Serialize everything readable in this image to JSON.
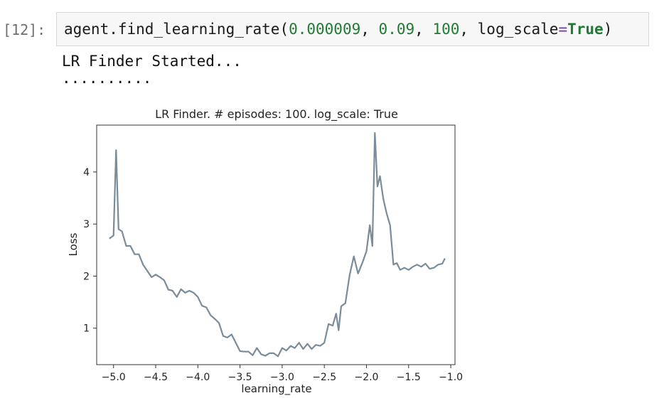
{
  "cell": {
    "prompt": "[12]:",
    "code": {
      "fn": "agent.find_learning_rate",
      "open_paren": "(",
      "arg1": "0.000009",
      "sep1": ", ",
      "arg2": "0.09",
      "sep2": ", ",
      "arg3": "100",
      "sep3": ", ",
      "kw_name": "log_scale",
      "kw_eq": "=",
      "kw_val": "True",
      "close_paren": ")"
    }
  },
  "output": {
    "line1": "LR Finder Started...",
    "line2": ".........."
  },
  "chart_data": {
    "type": "line",
    "title": "LR Finder. # episodes: 100. log_scale: True",
    "xlabel": "learning_rate",
    "ylabel": "Loss",
    "xlim": [
      -5.2,
      -0.95
    ],
    "ylim": [
      0.3,
      4.9
    ],
    "xticks": [
      -5.0,
      -4.5,
      -4.0,
      -3.5,
      -3.0,
      -2.5,
      -2.0,
      -1.5,
      -1.0
    ],
    "xtick_labels": [
      "−5.0",
      "−4.5",
      "−4.0",
      "−3.5",
      "−3.0",
      "−2.5",
      "−2.0",
      "−1.5",
      "−1.0"
    ],
    "yticks": [
      1,
      2,
      3,
      4
    ],
    "ytick_labels": [
      "1",
      "2",
      "3",
      "4"
    ],
    "line_color": "#7a8c99",
    "series": [
      {
        "x": [
          -5.05,
          -5.0,
          -4.97,
          -4.94,
          -4.9,
          -4.85,
          -4.8,
          -4.75,
          -4.7,
          -4.65,
          -4.6,
          -4.55,
          -4.5,
          -4.45,
          -4.4,
          -4.35,
          -4.3,
          -4.25,
          -4.2,
          -4.15,
          -4.1,
          -4.05,
          -4.0,
          -3.95,
          -3.9,
          -3.85,
          -3.8,
          -3.75,
          -3.7,
          -3.65,
          -3.6,
          -3.55,
          -3.5,
          -3.45,
          -3.4,
          -3.35,
          -3.3,
          -3.25,
          -3.2,
          -3.15,
          -3.1,
          -3.05,
          -3.0,
          -2.95,
          -2.9,
          -2.85,
          -2.8,
          -2.75,
          -2.7,
          -2.65,
          -2.6,
          -2.55,
          -2.5,
          -2.45,
          -2.4,
          -2.36,
          -2.33,
          -2.3,
          -2.25,
          -2.2,
          -2.15,
          -2.1,
          -2.05,
          -2.0,
          -1.96,
          -1.93,
          -1.9,
          -1.87,
          -1.84,
          -1.8,
          -1.76,
          -1.72,
          -1.68,
          -1.64,
          -1.6,
          -1.55,
          -1.5,
          -1.45,
          -1.4,
          -1.35,
          -1.3,
          -1.25,
          -1.2,
          -1.15,
          -1.1,
          -1.07
        ],
        "y": [
          2.72,
          2.78,
          4.42,
          2.9,
          2.86,
          2.58,
          2.58,
          2.42,
          2.42,
          2.22,
          2.1,
          1.98,
          2.03,
          1.98,
          1.92,
          1.74,
          1.72,
          1.6,
          1.75,
          1.68,
          1.72,
          1.68,
          1.6,
          1.43,
          1.4,
          1.25,
          1.18,
          1.1,
          0.85,
          0.82,
          0.88,
          0.72,
          0.56,
          0.55,
          0.55,
          0.48,
          0.62,
          0.5,
          0.47,
          0.52,
          0.52,
          0.46,
          0.62,
          0.57,
          0.66,
          0.62,
          0.72,
          0.6,
          0.7,
          0.6,
          0.68,
          0.66,
          0.72,
          1.08,
          1.05,
          1.28,
          0.96,
          1.42,
          1.48,
          2.02,
          2.38,
          2.05,
          2.25,
          2.48,
          2.98,
          2.58,
          4.75,
          3.72,
          3.92,
          3.48,
          3.2,
          2.98,
          2.22,
          2.25,
          2.12,
          2.16,
          2.12,
          2.18,
          2.22,
          2.18,
          2.24,
          2.14,
          2.16,
          2.22,
          2.24,
          2.34
        ]
      }
    ]
  }
}
